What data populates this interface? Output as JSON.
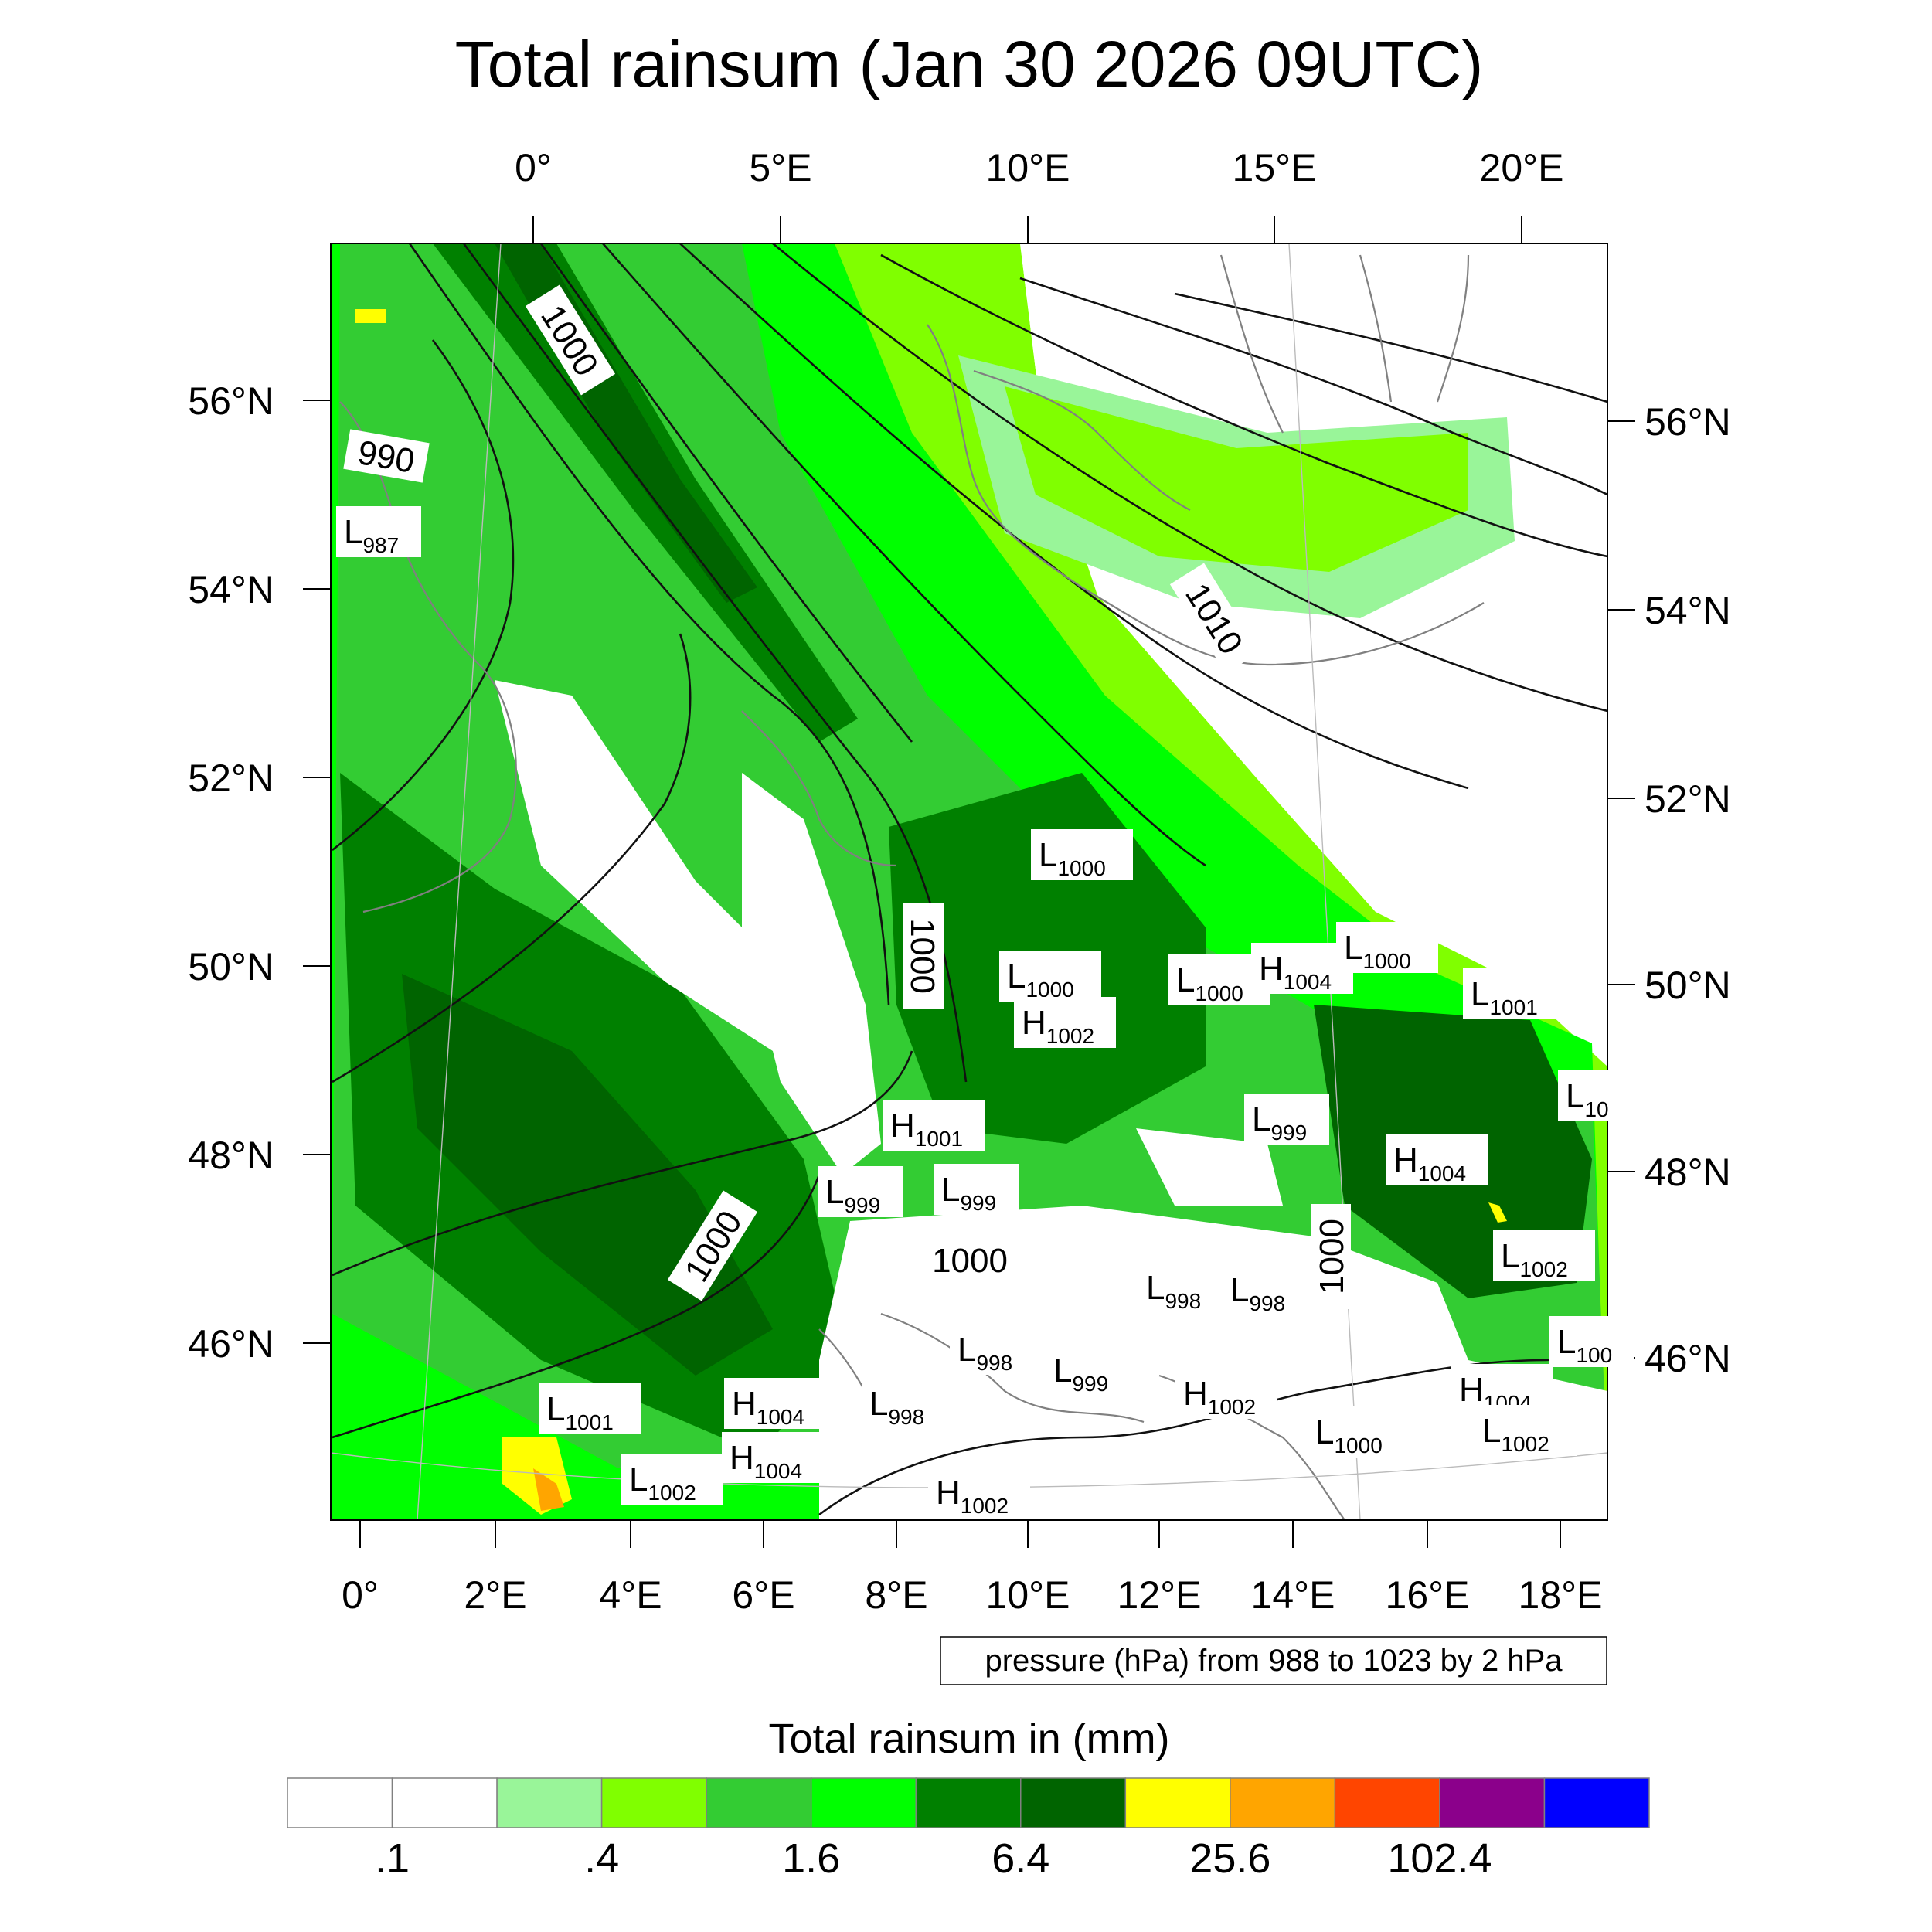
{
  "title": "Total rainsum (Jan 30 2026 09UTC)",
  "top_lon_ticks": [
    "0°",
    "5°E",
    "10°E",
    "15°E",
    "20°E"
  ],
  "bottom_lon_ticks": [
    "0°",
    "2°E",
    "4°E",
    "6°E",
    "8°E",
    "10°E",
    "12°E",
    "14°E",
    "16°E",
    "18°E"
  ],
  "left_lat_ticks": [
    "56°N",
    "54°N",
    "52°N",
    "50°N",
    "48°N",
    "46°N"
  ],
  "right_lat_ticks": [
    "56°N",
    "54°N",
    "52°N",
    "50°N",
    "48°N",
    "46°N"
  ],
  "contour_labels": [
    "1000",
    "990",
    "1010",
    "1000",
    "1000",
    "1000",
    "1000"
  ],
  "pressure_centers": [
    {
      "type": "L",
      "value": "987"
    },
    {
      "type": "L",
      "value": "1000"
    },
    {
      "type": "L",
      "value": "1000"
    },
    {
      "type": "H",
      "value": "1002"
    },
    {
      "type": "L",
      "value": "1000"
    },
    {
      "type": "H",
      "value": "1004"
    },
    {
      "type": "L",
      "value": "1000"
    },
    {
      "type": "L",
      "value": "1001"
    },
    {
      "type": "L",
      "value": "10"
    },
    {
      "type": "H",
      "value": "1001"
    },
    {
      "type": "L",
      "value": "999"
    },
    {
      "type": "L",
      "value": "999"
    },
    {
      "type": "L",
      "value": "999"
    },
    {
      "type": "H",
      "value": "1004"
    },
    {
      "type": "L",
      "value": "1002"
    },
    {
      "type": "L",
      "value": "998"
    },
    {
      "type": "L",
      "value": "998"
    },
    {
      "type": "L",
      "value": "998"
    },
    {
      "type": "L",
      "value": "999"
    },
    {
      "type": "H",
      "value": "1002"
    },
    {
      "type": "L",
      "value": "100"
    },
    {
      "type": "H",
      "value": "1004"
    },
    {
      "type": "L",
      "value": "1002"
    },
    {
      "type": "L",
      "value": "1001"
    },
    {
      "type": "H",
      "value": "1004"
    },
    {
      "type": "L",
      "value": "998"
    },
    {
      "type": "H",
      "value": "1004"
    },
    {
      "type": "L",
      "value": "1002"
    },
    {
      "type": "H",
      "value": "1002"
    },
    {
      "type": "L",
      "value": "1000"
    }
  ],
  "pressure_note": "pressure (hPa) from 988 to 1023 by 2 hPa",
  "legend": {
    "title": "Total rainsum in (mm)",
    "colors": [
      "#ffffff",
      "#ffffff",
      "#99f599",
      "#80ff00",
      "#33cc33",
      "#00ff00",
      "#008000",
      "#006400",
      "#ffff00",
      "#ffa500",
      "#ff4500",
      "#8b008b",
      "#0000ff"
    ],
    "labels": [
      ".1",
      ".4",
      "1.6",
      "6.4",
      "25.6",
      "102.4"
    ]
  }
}
